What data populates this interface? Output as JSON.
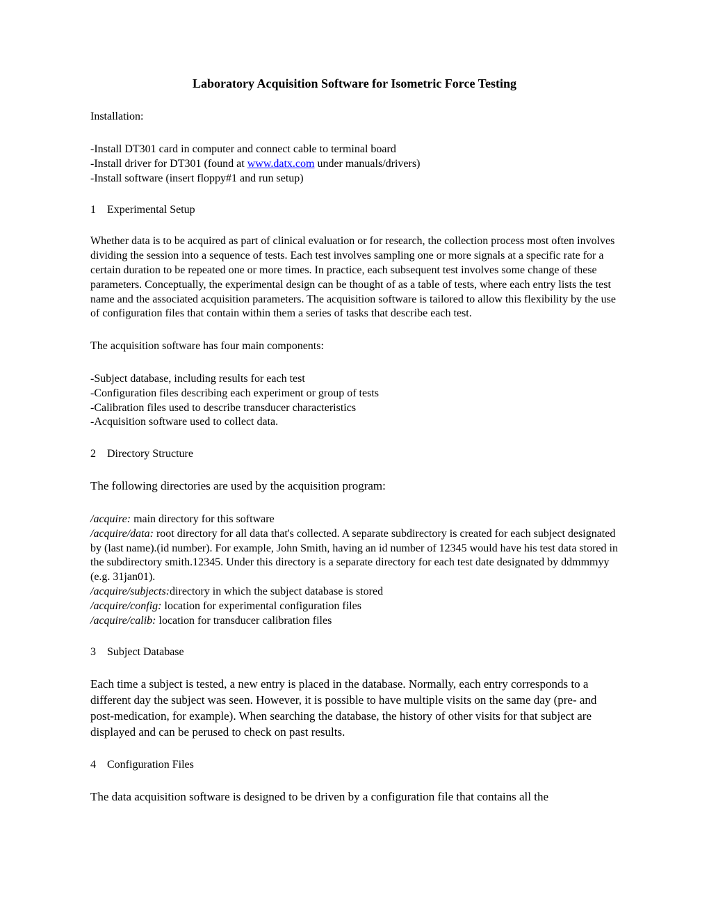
{
  "title": "Laboratory Acquisition Software for Isometric Force Testing",
  "installation": {
    "heading": "Installation:",
    "line1_a": "-Install DT301 card in computer and connect cable to terminal board",
    "line2_a": "-Install driver for DT301 (found at ",
    "line2_link": "www.datx.com",
    "line2_b": " under manuals/drivers)",
    "line3": "-Install software (insert floppy#1 and run setup)"
  },
  "sec1": {
    "num": "1",
    "title": "Experimental Setup",
    "para1": "Whether data is to be acquired as part of clinical evaluation or for research, the collection process most often involves dividing the session into a sequence of tests.  Each test involves sampling one or more signals at a specific rate for a certain duration to be repeated one or more times.  In practice, each subsequent test involves some change of these parameters.  Conceptually, the experimental design can be thought of as a table of tests, where each entry lists the test name and the associated acquisition parameters.  The acquisition software is tailored to allow this flexibility by the use of configuration files that contain within them a series of tasks that describe each test.",
    "para2": "The acquisition software has four main components:",
    "bullet1": "-Subject database, including results for each test",
    "bullet2": "-Configuration files describing each experiment or group of tests",
    "bullet3": "-Calibration files used to describe transducer characteristics",
    "bullet4": "-Acquisition software used to collect data."
  },
  "sec2": {
    "num": "2",
    "title": "Directory Structure",
    "intro": "The following directories are used by the acquisition program:",
    "d1_label": "/acquire:",
    "d1_text": " main directory for this software",
    "d2_label": "/acquire/data:",
    "d2_text": " root directory for all data that's collected.  A separate subdirectory is created for each subject designated by (last name).(id number).  For example, John Smith, having an id number of 12345 would have his test data stored in the subdirectory smith.12345.  Under this directory is a separate directory for each test date designated by ddmmmyy (e.g. 31jan01).",
    "d3_label": "/acquire/subjects:",
    "d3_text": "directory in which the subject database is stored",
    "d4_label": "/acquire/config:",
    "d4_text": " location for experimental configuration files",
    "d5_label": "/acquire/calib:",
    "d5_text": " location for transducer calibration files"
  },
  "sec3": {
    "num": "3",
    "title": "Subject Database",
    "para": "Each time a subject is tested, a new entry is placed in the database.  Normally, each entry corresponds to a different day the subject was seen.  However, it is possible to have multiple visits on the same day (pre- and post-medication, for example).  When searching the database, the history of other visits for that subject are displayed and can be perused to check on past results."
  },
  "sec4": {
    "num": "4",
    "title": "Configuration Files",
    "para": "The data acquisition software is designed to be driven by a configuration file that contains all the"
  }
}
